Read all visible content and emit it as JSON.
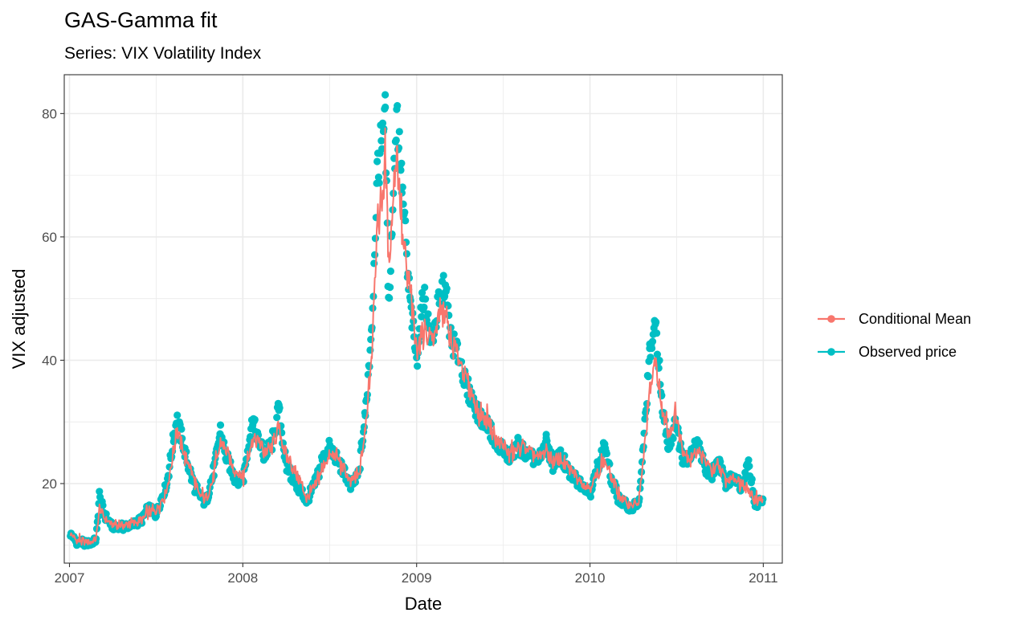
{
  "chart_data": {
    "type": "line",
    "title": "GAS-Gamma fit",
    "subtitle": "Series: VIX Volatility Index",
    "xlabel": "Date",
    "ylabel": "VIX adjusted",
    "x_domain": [
      "2007-01-03",
      "2010-12-31"
    ],
    "x_lim": [
      "2006-12-21",
      "2011-02-10"
    ],
    "x_ticks": [
      "2007",
      "2008",
      "2009",
      "2010",
      "2011"
    ],
    "x_tick_dates": [
      "2007-01-01",
      "2008-01-01",
      "2009-01-01",
      "2010-01-01",
      "2011-01-01"
    ],
    "ylim": [
      7.1,
      86.3
    ],
    "y_ticks": [
      20,
      40,
      60,
      80
    ],
    "y_minor_ticks": [
      10,
      30,
      50,
      70
    ],
    "grid": true,
    "legend_position": "right",
    "series": [
      {
        "name": "Conditional Mean",
        "color": "#F8766D",
        "geoms": [
          "line",
          "point"
        ],
        "points": [
          [
            "2007-01-03",
            12.0
          ],
          [
            "2007-01-15",
            10.8
          ],
          [
            "2007-01-31",
            10.6
          ],
          [
            "2007-02-15",
            10.5
          ],
          [
            "2007-02-26",
            11.0
          ],
          [
            "2007-03-05",
            16.0
          ],
          [
            "2007-03-15",
            14.5
          ],
          [
            "2007-04-01",
            13.2
          ],
          [
            "2007-05-01",
            13.2
          ],
          [
            "2007-06-01",
            14.0
          ],
          [
            "2007-06-15",
            15.0
          ],
          [
            "2007-07-01",
            15.5
          ],
          [
            "2007-07-25",
            19.0
          ],
          [
            "2007-08-10",
            26.0
          ],
          [
            "2007-08-16",
            28.5
          ],
          [
            "2007-09-01",
            24.5
          ],
          [
            "2007-09-15",
            22.0
          ],
          [
            "2007-10-01",
            18.0
          ],
          [
            "2007-10-15",
            17.5
          ],
          [
            "2007-11-01",
            21.0
          ],
          [
            "2007-11-15",
            26.5
          ],
          [
            "2007-11-26",
            25.5
          ],
          [
            "2007-12-15",
            22.0
          ],
          [
            "2008-01-01",
            21.0
          ],
          [
            "2008-01-22",
            27.0
          ],
          [
            "2008-02-01",
            27.0
          ],
          [
            "2008-02-15",
            25.0
          ],
          [
            "2008-03-01",
            25.5
          ],
          [
            "2008-03-17",
            29.0
          ],
          [
            "2008-04-01",
            24.5
          ],
          [
            "2008-04-15",
            22.5
          ],
          [
            "2008-05-01",
            20.5
          ],
          [
            "2008-05-15",
            17.5
          ],
          [
            "2008-06-01",
            19.5
          ],
          [
            "2008-06-15",
            22.5
          ],
          [
            "2008-07-01",
            24.5
          ],
          [
            "2008-07-15",
            24.5
          ],
          [
            "2008-08-01",
            22.5
          ],
          [
            "2008-08-15",
            20.0
          ],
          [
            "2008-09-01",
            21.0
          ],
          [
            "2008-09-15",
            28.5
          ],
          [
            "2008-09-29",
            42.0
          ],
          [
            "2008-10-10",
            62.0
          ],
          [
            "2008-10-24",
            68.0
          ],
          [
            "2008-10-27",
            75.0
          ],
          [
            "2008-11-03",
            55.0
          ],
          [
            "2008-11-20",
            75.0
          ],
          [
            "2008-12-01",
            60.0
          ],
          [
            "2008-12-15",
            53.0
          ],
          [
            "2009-01-01",
            42.0
          ],
          [
            "2009-01-15",
            45.0
          ],
          [
            "2009-02-01",
            43.0
          ],
          [
            "2009-02-15",
            46.0
          ],
          [
            "2009-03-01",
            48.0
          ],
          [
            "2009-03-15",
            42.5
          ],
          [
            "2009-04-01",
            40.0
          ],
          [
            "2009-04-15",
            37.0
          ],
          [
            "2009-05-01",
            33.5
          ],
          [
            "2009-05-15",
            31.0
          ],
          [
            "2009-06-01",
            30.0
          ],
          [
            "2009-06-15",
            27.5
          ],
          [
            "2009-07-01",
            26.0
          ],
          [
            "2009-07-15",
            25.0
          ],
          [
            "2009-08-01",
            25.5
          ],
          [
            "2009-08-15",
            26.0
          ],
          [
            "2009-09-01",
            25.0
          ],
          [
            "2009-09-15",
            24.0
          ],
          [
            "2009-10-01",
            25.5
          ],
          [
            "2009-10-15",
            23.5
          ],
          [
            "2009-11-01",
            24.0
          ],
          [
            "2009-11-15",
            22.5
          ],
          [
            "2009-12-01",
            21.5
          ],
          [
            "2009-12-15",
            20.0
          ],
          [
            "2010-01-01",
            19.5
          ],
          [
            "2010-01-15",
            21.0
          ],
          [
            "2010-02-01",
            24.0
          ],
          [
            "2010-02-15",
            21.0
          ],
          [
            "2010-03-01",
            18.5
          ],
          [
            "2010-03-15",
            17.0
          ],
          [
            "2010-04-01",
            16.5
          ],
          [
            "2010-04-15",
            17.0
          ],
          [
            "2010-05-07",
            35.0
          ],
          [
            "2010-05-20",
            40.0
          ],
          [
            "2010-06-01",
            32.0
          ],
          [
            "2010-06-15",
            28.0
          ],
          [
            "2010-07-01",
            31.0
          ],
          [
            "2010-07-15",
            25.5
          ],
          [
            "2010-08-01",
            24.0
          ],
          [
            "2010-08-15",
            25.5
          ],
          [
            "2010-09-01",
            23.5
          ],
          [
            "2010-09-15",
            22.0
          ],
          [
            "2010-10-01",
            22.5
          ],
          [
            "2010-10-15",
            20.5
          ],
          [
            "2010-11-01",
            21.0
          ],
          [
            "2010-11-15",
            20.0
          ],
          [
            "2010-12-01",
            19.0
          ],
          [
            "2010-12-15",
            17.0
          ],
          [
            "2010-12-31",
            17.5
          ]
        ]
      },
      {
        "name": "Observed price",
        "color": "#00BFC4",
        "geoms": [
          "line",
          "point"
        ],
        "points": [
          [
            "2007-01-03",
            12.0
          ],
          [
            "2007-01-15",
            10.5
          ],
          [
            "2007-01-31",
            10.4
          ],
          [
            "2007-02-15",
            10.3
          ],
          [
            "2007-02-26",
            10.8
          ],
          [
            "2007-03-05",
            18.0
          ],
          [
            "2007-03-15",
            15.0
          ],
          [
            "2007-04-01",
            13.0
          ],
          [
            "2007-05-01",
            13.0
          ],
          [
            "2007-06-01",
            14.0
          ],
          [
            "2007-06-15",
            16.0
          ],
          [
            "2007-07-01",
            15.0
          ],
          [
            "2007-07-25",
            20.0
          ],
          [
            "2007-08-10",
            28.0
          ],
          [
            "2007-08-16",
            30.5
          ],
          [
            "2007-09-01",
            25.0
          ],
          [
            "2007-09-15",
            21.0
          ],
          [
            "2007-10-01",
            18.0
          ],
          [
            "2007-10-15",
            17.0
          ],
          [
            "2007-11-01",
            22.0
          ],
          [
            "2007-11-15",
            28.5
          ],
          [
            "2007-11-26",
            24.5
          ],
          [
            "2007-12-15",
            21.0
          ],
          [
            "2008-01-01",
            20.5
          ],
          [
            "2008-01-22",
            30.5
          ],
          [
            "2008-02-01",
            27.5
          ],
          [
            "2008-02-15",
            24.5
          ],
          [
            "2008-03-01",
            26.0
          ],
          [
            "2008-03-17",
            32.0
          ],
          [
            "2008-04-01",
            23.0
          ],
          [
            "2008-04-15",
            21.0
          ],
          [
            "2008-05-01",
            19.0
          ],
          [
            "2008-05-15",
            17.0
          ],
          [
            "2008-06-01",
            20.0
          ],
          [
            "2008-06-15",
            23.5
          ],
          [
            "2008-07-01",
            26.0
          ],
          [
            "2008-07-15",
            24.0
          ],
          [
            "2008-08-01",
            22.0
          ],
          [
            "2008-08-15",
            19.5
          ],
          [
            "2008-09-01",
            21.5
          ],
          [
            "2008-09-15",
            31.0
          ],
          [
            "2008-09-29",
            46.5
          ],
          [
            "2008-10-10",
            69.5
          ],
          [
            "2008-10-24",
            79.5
          ],
          [
            "2008-10-27",
            80.0
          ],
          [
            "2008-11-03",
            48.0
          ],
          [
            "2008-11-20",
            81.0
          ],
          [
            "2008-12-01",
            68.5
          ],
          [
            "2008-12-15",
            52.0
          ],
          [
            "2009-01-01",
            40.0
          ],
          [
            "2009-01-15",
            51.0
          ],
          [
            "2009-02-01",
            43.0
          ],
          [
            "2009-02-15",
            48.5
          ],
          [
            "2009-03-01",
            52.5
          ],
          [
            "2009-03-15",
            43.0
          ],
          [
            "2009-04-01",
            40.5
          ],
          [
            "2009-04-15",
            36.0
          ],
          [
            "2009-05-01",
            33.0
          ],
          [
            "2009-05-15",
            30.5
          ],
          [
            "2009-06-01",
            29.5
          ],
          [
            "2009-06-15",
            26.5
          ],
          [
            "2009-07-01",
            25.5
          ],
          [
            "2009-07-15",
            24.0
          ],
          [
            "2009-08-01",
            26.5
          ],
          [
            "2009-08-15",
            25.0
          ],
          [
            "2009-09-01",
            24.5
          ],
          [
            "2009-09-15",
            23.5
          ],
          [
            "2009-10-01",
            27.0
          ],
          [
            "2009-10-15",
            23.0
          ],
          [
            "2009-11-01",
            24.5
          ],
          [
            "2009-11-15",
            22.0
          ],
          [
            "2009-12-01",
            21.0
          ],
          [
            "2009-12-15",
            20.0
          ],
          [
            "2010-01-01",
            18.5
          ],
          [
            "2010-01-15",
            22.0
          ],
          [
            "2010-02-01",
            26.5
          ],
          [
            "2010-02-15",
            20.5
          ],
          [
            "2010-03-01",
            18.0
          ],
          [
            "2010-03-15",
            16.5
          ],
          [
            "2010-04-01",
            16.0
          ],
          [
            "2010-04-15",
            17.0
          ],
          [
            "2010-05-07",
            41.0
          ],
          [
            "2010-05-20",
            45.8
          ],
          [
            "2010-06-01",
            33.0
          ],
          [
            "2010-06-15",
            26.0
          ],
          [
            "2010-07-01",
            30.0
          ],
          [
            "2010-07-15",
            24.0
          ],
          [
            "2010-08-01",
            24.5
          ],
          [
            "2010-08-15",
            27.0
          ],
          [
            "2010-09-01",
            22.0
          ],
          [
            "2010-09-15",
            21.5
          ],
          [
            "2010-10-01",
            23.5
          ],
          [
            "2010-10-15",
            19.5
          ],
          [
            "2010-11-01",
            21.5
          ],
          [
            "2010-11-15",
            19.5
          ],
          [
            "2010-12-01",
            23.5
          ],
          [
            "2010-12-15",
            16.5
          ],
          [
            "2010-12-31",
            17.5
          ]
        ]
      }
    ]
  }
}
